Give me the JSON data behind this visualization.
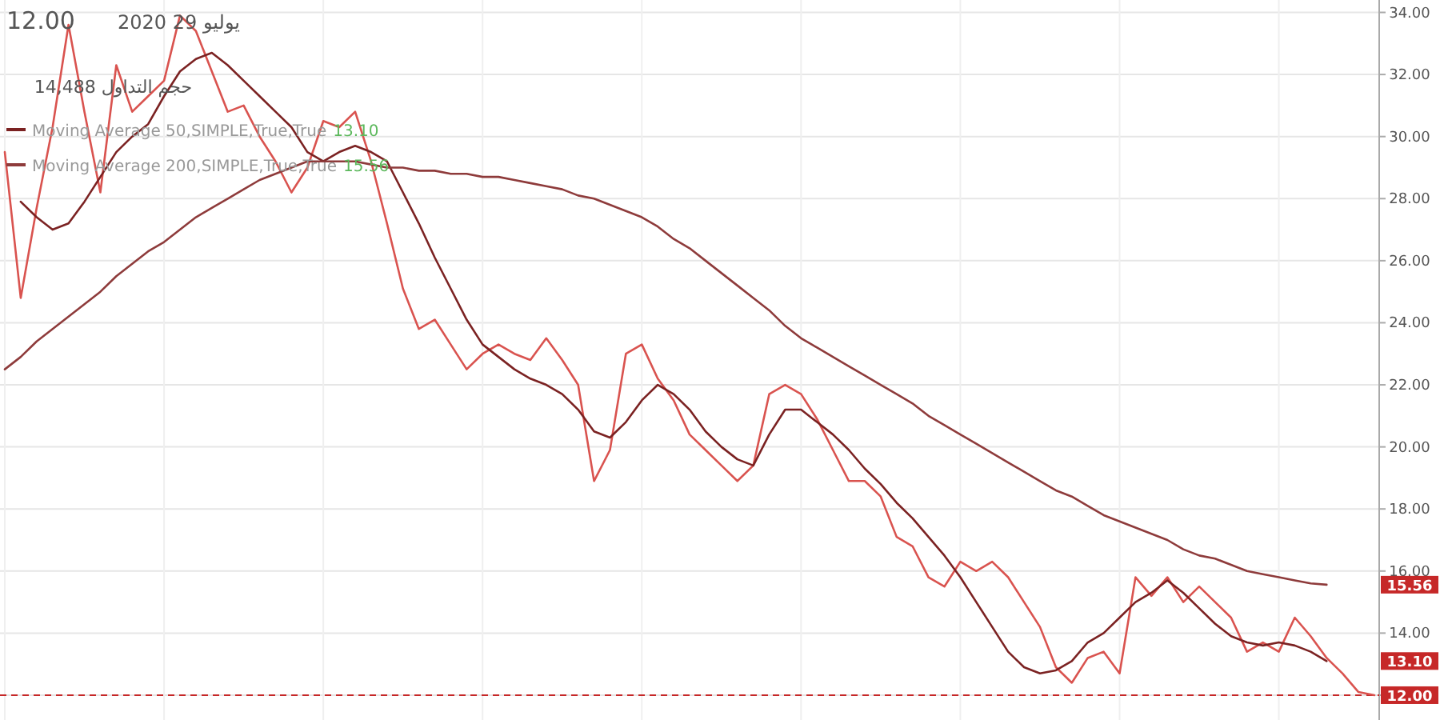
{
  "chart_data": {
    "type": "line",
    "annotations": [
      "12.00",
      "يوليو 29 2020",
      "حجم التداول 14,488",
      {
        "text": "15.56",
        "y": 15.56
      },
      {
        "text": "13.10",
        "y": 13.1
      }
    ],
    "categories": [
      null,
      null,
      null,
      null,
      null,
      null,
      null,
      null,
      null,
      null,
      null,
      null,
      null,
      null,
      null,
      null,
      null,
      null,
      null,
      null,
      null,
      null,
      null,
      null,
      null,
      null,
      null,
      null,
      null,
      null,
      null,
      null,
      null,
      null,
      null,
      null,
      null,
      null,
      null,
      null,
      null,
      null,
      null,
      null,
      null,
      null,
      null,
      null,
      null,
      null,
      null,
      null,
      null,
      null,
      null,
      null,
      null,
      null,
      null,
      null,
      null,
      null,
      null,
      null,
      null,
      null,
      null,
      null,
      null,
      null,
      null,
      null,
      null,
      null,
      null,
      null,
      null,
      null,
      null,
      null,
      null,
      null,
      null,
      null,
      null,
      null,
      null
    ],
    "series": [
      {
        "color": "#d9534f",
        "values": [
          29.5,
          24.8,
          27.7,
          30.3,
          33.6,
          30.8,
          28.2,
          32.3,
          30.8,
          31.3,
          31.8,
          33.9,
          33.4,
          32.1,
          30.8,
          31.0,
          30.0,
          29.2,
          28.2,
          29.0,
          30.5,
          30.3,
          30.8,
          29.2,
          27.2,
          25.1,
          23.8,
          24.1,
          23.3,
          22.5,
          23.0,
          23.3,
          23.0,
          22.8,
          23.5,
          22.8,
          22.0,
          18.9,
          19.9,
          23.0,
          23.3,
          22.2,
          21.5,
          20.4,
          19.9,
          19.4,
          18.9,
          19.4,
          21.7,
          22.0,
          21.7,
          20.9,
          19.9,
          18.9,
          18.9,
          18.4,
          17.1,
          16.8,
          15.8,
          15.5,
          16.3,
          16.0,
          16.3,
          15.8,
          15.0,
          14.2,
          12.9,
          12.4,
          13.2,
          13.4,
          12.7,
          15.8,
          15.2,
          15.8,
          15.0,
          15.5,
          15.0,
          14.5,
          13.4,
          13.7,
          13.4,
          14.5,
          13.9,
          13.2,
          12.7,
          12.1,
          12.0
        ]
      },
      {
        "name": "Moving Average 50,SIMPLE,True,True",
        "color": "#7b2222",
        "values": [
          null,
          27.9,
          27.4,
          27.0,
          27.2,
          27.9,
          28.7,
          29.5,
          30.0,
          30.4,
          31.3,
          32.1,
          32.5,
          32.7,
          32.3,
          31.8,
          31.3,
          30.8,
          30.3,
          29.5,
          29.2,
          29.5,
          29.7,
          29.5,
          29.2,
          28.2,
          27.2,
          26.1,
          25.1,
          24.1,
          23.3,
          22.9,
          22.5,
          22.2,
          22.0,
          21.7,
          21.2,
          20.5,
          20.3,
          20.8,
          21.5,
          22.0,
          21.7,
          21.2,
          20.5,
          20.0,
          19.6,
          19.4,
          20.4,
          21.2,
          21.2,
          20.8,
          20.4,
          19.9,
          19.3,
          18.8,
          18.2,
          17.7,
          17.1,
          16.5,
          15.8,
          15.0,
          14.2,
          13.4,
          12.9,
          12.7,
          12.8,
          13.1,
          13.7,
          14.0,
          14.5,
          15.0,
          15.3,
          15.7,
          15.3,
          14.8,
          14.3,
          13.9,
          13.7,
          13.6,
          13.7,
          13.6,
          13.4,
          13.1,
          null,
          null,
          null
        ]
      },
      {
        "name": "Moving Average 200,SIMPLE,True,True",
        "color": "#8e3b3b",
        "values": [
          22.5,
          22.9,
          23.4,
          23.8,
          24.2,
          24.6,
          25.0,
          25.5,
          25.9,
          26.3,
          26.6,
          27.0,
          27.4,
          27.7,
          28.0,
          28.3,
          28.6,
          28.8,
          29.0,
          29.2,
          29.2,
          29.2,
          29.2,
          29.1,
          29.0,
          29.0,
          28.9,
          28.9,
          28.8,
          28.8,
          28.7,
          28.7,
          28.6,
          28.5,
          28.4,
          28.3,
          28.1,
          28.0,
          27.8,
          27.6,
          27.4,
          27.1,
          26.7,
          26.4,
          26.0,
          25.6,
          25.2,
          24.8,
          24.4,
          23.9,
          23.5,
          23.2,
          22.9,
          22.6,
          22.3,
          22.0,
          21.7,
          21.4,
          21.0,
          20.7,
          20.4,
          20.1,
          19.8,
          19.5,
          19.2,
          18.9,
          18.6,
          18.4,
          18.1,
          17.8,
          17.6,
          17.4,
          17.2,
          17.0,
          16.7,
          16.5,
          16.4,
          16.2,
          16.0,
          15.9,
          15.8,
          15.7,
          15.6,
          15.56,
          null,
          null,
          null
        ]
      }
    ],
    "ylim": [
      11.2,
      34.4
    ],
    "yticks": [
      {
        "value": 12,
        "label": "12.00"
      },
      {
        "value": 14,
        "label": "14.00"
      },
      {
        "value": 16,
        "label": "16.00"
      },
      {
        "value": 18,
        "label": "18.00"
      },
      {
        "value": 20,
        "label": "20.00"
      },
      {
        "value": 22,
        "label": "22.00"
      },
      {
        "value": 24,
        "label": "24.00"
      },
      {
        "value": 26,
        "label": "26.00"
      },
      {
        "value": 28,
        "label": "28.00"
      },
      {
        "value": 30,
        "label": "30.00"
      },
      {
        "value": 32,
        "label": "32.00"
      },
      {
        "value": 34,
        "label": "34.00"
      }
    ],
    "ref_lines": [
      {
        "axis": "y",
        "value": 12,
        "color": "#c62828",
        "line_style": "dashed"
      }
    ],
    "grid": true,
    "legend": "top left",
    "tick_labels": "y"
  }
}
